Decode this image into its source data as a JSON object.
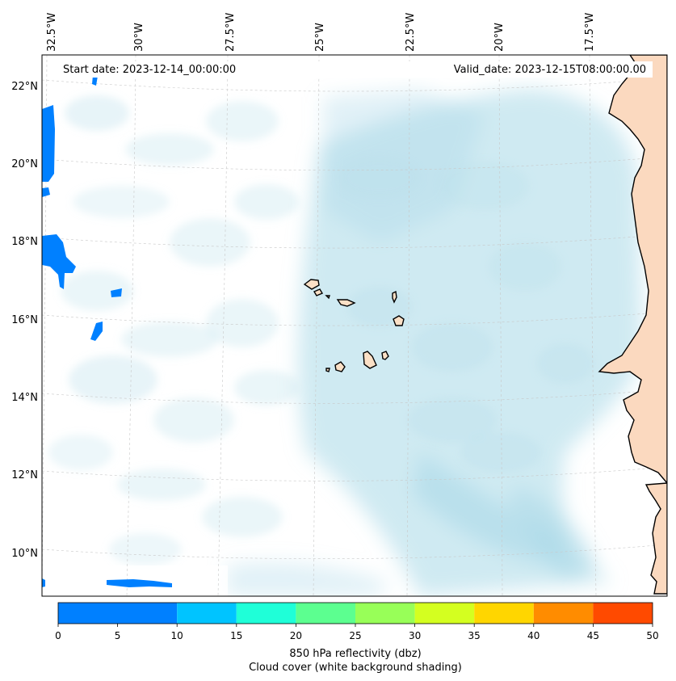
{
  "header": {
    "start_date": "Start date: 2023-12-14_00:00:00",
    "valid_date": "Valid_date: 2023-12-15T08:00:00.00"
  },
  "map": {
    "lon_ticks": [
      "32.5°W",
      "30°W",
      "27.5°W",
      "25°W",
      "22.5°W",
      "20°W",
      "17.5°W"
    ],
    "lat_ticks": [
      "22°N",
      "20°N",
      "18°N",
      "16°N",
      "14°N",
      "12°N",
      "10°N"
    ],
    "land_color": "#fbd9bf",
    "cloud_color": "#a8d8e8",
    "reflectivity_color": "#0080ff"
  },
  "colorbar": {
    "ticks": [
      "0",
      "5",
      "10",
      "15",
      "20",
      "25",
      "30",
      "35",
      "40",
      "45",
      "50"
    ],
    "colors": [
      "#0080ff",
      "#00c4ff",
      "#1fffd8",
      "#5cff90",
      "#98ff58",
      "#d4ff20",
      "#ffd600",
      "#ff8c00",
      "#ff4a00"
    ],
    "label_line1": "850 hPa reflectivity (dbz)",
    "label_line2": "Cloud cover (white background shading)"
  }
}
